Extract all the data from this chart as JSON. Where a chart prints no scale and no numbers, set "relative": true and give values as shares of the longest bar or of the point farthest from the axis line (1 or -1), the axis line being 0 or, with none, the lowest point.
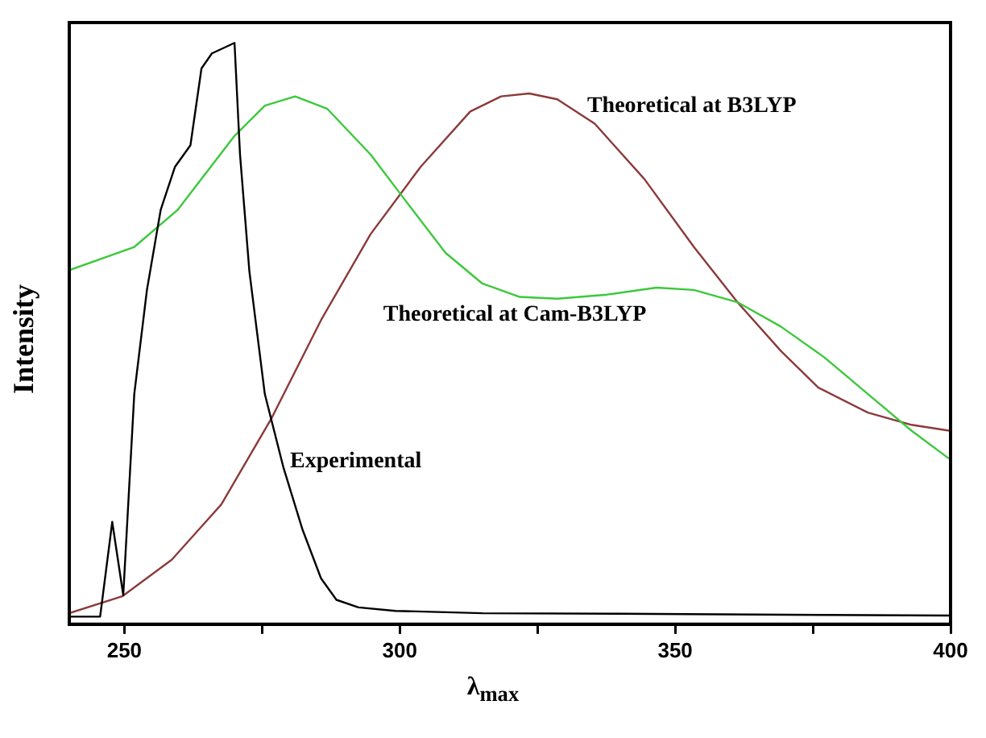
{
  "chart_data": {
    "type": "line",
    "relative": true,
    "xlabel": "λ$_{max}$",
    "ylabel": "Intensity",
    "xlim": [
      240,
      400
    ],
    "xticks": [
      250,
      {
        "value": 275,
        "label": null
      },
      300,
      {
        "value": 325,
        "label": null
      },
      350,
      {
        "value": 375,
        "label": null
      },
      400
    ],
    "grid": false,
    "legend": false,
    "marker": "none",
    "line_style": "solid",
    "series": [
      {
        "name": "Experimental",
        "color": "#000000",
        "x": [
          240,
          245.6,
          247.8,
          249.8,
          251.8,
          254.1,
          256.6,
          259.2,
          262,
          264,
          265.9,
          270,
          271,
          272.7,
          275.5,
          278.9,
          282.3,
          285.7,
          288.5,
          292.5,
          299.2,
          315,
          339.9,
          377.1,
          399.7
        ],
        "values": [
          0.013,
          0.013,
          0.176,
          0.05,
          0.396,
          0.575,
          0.713,
          0.787,
          0.824,
          0.956,
          0.982,
          1,
          0.808,
          0.607,
          0.396,
          0.269,
          0.164,
          0.079,
          0.042,
          0.029,
          0.023,
          0.019,
          0.018,
          0.016,
          0.015
        ]
      },
      {
        "name": "Theoretical at Cam-B3LYP",
        "color": "#3cc83c",
        "x": [
          240,
          251.8,
          259.7,
          269.9,
          275.5,
          281,
          286.8,
          294.7,
          301.5,
          308.3,
          315,
          321.8,
          328.6,
          337.6,
          346.6,
          353.4,
          361.3,
          369.2,
          377.1,
          385,
          392.9,
          399.7
        ],
        "values": [
          0.609,
          0.649,
          0.713,
          0.839,
          0.892,
          0.908,
          0.887,
          0.808,
          0.723,
          0.639,
          0.586,
          0.563,
          0.56,
          0.567,
          0.579,
          0.575,
          0.554,
          0.512,
          0.459,
          0.396,
          0.333,
          0.285
        ]
      },
      {
        "name": "Theoretical at B3LYP",
        "color": "#8b3a3a",
        "x": [
          240,
          249.6,
          258.6,
          267.6,
          276.7,
          285.7,
          294.7,
          303.8,
          312.8,
          318.4,
          323.5,
          328.6,
          335.4,
          344.4,
          353.4,
          361.3,
          369.2,
          376,
          385,
          392.9,
          399.7
        ],
        "values": [
          0.019,
          0.048,
          0.111,
          0.206,
          0.354,
          0.523,
          0.671,
          0.787,
          0.882,
          0.908,
          0.913,
          0.903,
          0.861,
          0.766,
          0.649,
          0.554,
          0.47,
          0.407,
          0.364,
          0.343,
          0.333
        ]
      }
    ]
  }
}
